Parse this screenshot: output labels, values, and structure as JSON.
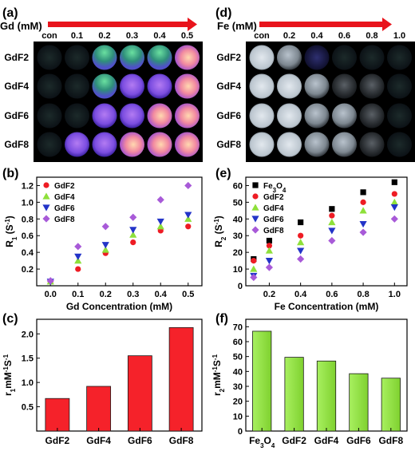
{
  "panels": {
    "a": {
      "letter": "(a)",
      "axis_title": "Gd (mM)",
      "concentrations": [
        "con",
        "0.1",
        "0.2",
        "0.3",
        "0.4",
        "0.5"
      ],
      "rows": [
        "GdF2",
        "GdF4",
        "GdF6",
        "GdF8"
      ]
    },
    "d": {
      "letter": "(d)",
      "axis_title": "Fe (mM)",
      "concentrations": [
        "con",
        "0.2",
        "0.4",
        "0.6",
        "0.8",
        "1.0"
      ],
      "rows": [
        "GdF2",
        "GdF4",
        "GdF6",
        "GdF8"
      ]
    }
  },
  "chart_data": [
    {
      "id": "b",
      "letter": "(b)",
      "type": "scatter",
      "xlabel": "Gd Concentration (mM)",
      "ylabel": "R1 (S-1)",
      "xlim": [
        -0.05,
        0.55
      ],
      "ylim": [
        0,
        1.3
      ],
      "xticks": [
        "0.0",
        "0.1",
        "0.2",
        "0.3",
        "0.4",
        "0.5"
      ],
      "yticks": [
        "0.2",
        "0.4",
        "0.6",
        "0.8",
        "1.0",
        "1.2"
      ],
      "legend": "top-left",
      "series": [
        {
          "name": "GdF2",
          "color": "#ee1c24",
          "marker": "circle",
          "x": [
            0,
            0.1,
            0.2,
            0.3,
            0.4,
            0.5
          ],
          "y": [
            0.05,
            0.2,
            0.39,
            0.52,
            0.66,
            0.71
          ]
        },
        {
          "name": "GdF4",
          "color": "#8ee03a",
          "marker": "triangle-up",
          "x": [
            0,
            0.1,
            0.2,
            0.3,
            0.4,
            0.5
          ],
          "y": [
            0.05,
            0.3,
            0.43,
            0.61,
            0.71,
            0.8
          ]
        },
        {
          "name": "GdF6",
          "color": "#2334c8",
          "marker": "triangle-down",
          "x": [
            0,
            0.1,
            0.2,
            0.3,
            0.4,
            0.5
          ],
          "y": [
            0.05,
            0.35,
            0.49,
            0.67,
            0.77,
            0.85
          ]
        },
        {
          "name": "GdF8",
          "color": "#a85ad8",
          "marker": "diamond",
          "x": [
            0,
            0.1,
            0.2,
            0.3,
            0.4,
            0.5
          ],
          "y": [
            0.06,
            0.47,
            0.71,
            0.82,
            1.03,
            1.2
          ]
        }
      ]
    },
    {
      "id": "e",
      "letter": "(e)",
      "type": "scatter",
      "xlabel": "Fe Concentration (mM)",
      "ylabel": "R2 (S-1)",
      "xlim": [
        0.05,
        1.08
      ],
      "ylim": [
        0,
        65
      ],
      "xticks": [
        "0.2",
        "0.4",
        "0.6",
        "0.8",
        "1.0"
      ],
      "yticks": [
        "0",
        "10",
        "20",
        "30",
        "40",
        "50",
        "60"
      ],
      "legend": "top-left",
      "series": [
        {
          "name": "Fe3O4",
          "color": "#000000",
          "marker": "square",
          "x": [
            0.1,
            0.2,
            0.4,
            0.6,
            0.8,
            1.0
          ],
          "y": [
            16,
            27,
            38,
            46,
            56,
            62
          ]
        },
        {
          "name": "GdF2",
          "color": "#ee1c24",
          "marker": "circle",
          "x": [
            0.1,
            0.2,
            0.4,
            0.6,
            0.8,
            1.0
          ],
          "y": [
            15,
            24,
            30,
            42,
            50,
            55
          ]
        },
        {
          "name": "GdF4",
          "color": "#8ee03a",
          "marker": "triangle-up",
          "x": [
            0.1,
            0.2,
            0.4,
            0.6,
            0.8,
            1.0
          ],
          "y": [
            10,
            21,
            26,
            38,
            45,
            50
          ]
        },
        {
          "name": "GdF6",
          "color": "#2334c8",
          "marker": "triangle-down",
          "x": [
            0.1,
            0.2,
            0.4,
            0.6,
            0.8,
            1.0
          ],
          "y": [
            6,
            15,
            21,
            33,
            37,
            47
          ]
        },
        {
          "name": "GdF8",
          "color": "#a85ad8",
          "marker": "diamond",
          "x": [
            0.1,
            0.2,
            0.4,
            0.6,
            0.8,
            1.0
          ],
          "y": [
            5,
            11,
            16,
            27,
            32,
            40
          ]
        }
      ]
    },
    {
      "id": "c",
      "letter": "(c)",
      "type": "bar",
      "ylabel": "r1 mM-1 S-1",
      "categories": [
        "GdF2",
        "GdF4",
        "GdF6",
        "GdF8"
      ],
      "values": [
        0.67,
        0.92,
        1.55,
        2.13
      ],
      "ylim": [
        0,
        2.3
      ],
      "yticks": [
        "0.5",
        "1.0",
        "1.5",
        "2.0"
      ],
      "color": "#f5222a"
    },
    {
      "id": "f",
      "letter": "(f)",
      "type": "bar",
      "ylabel": "r2 mM-1 S-1",
      "categories": [
        "Fe3O4",
        "GdF2",
        "GdF4",
        "GdF6",
        "GdF8"
      ],
      "values": [
        67,
        49.5,
        47,
        38.5,
        35.5
      ],
      "ylim": [
        0,
        75
      ],
      "yticks": [
        "0",
        "10",
        "20",
        "30",
        "40",
        "50",
        "60",
        "70"
      ],
      "color": "#8ee03a"
    }
  ]
}
